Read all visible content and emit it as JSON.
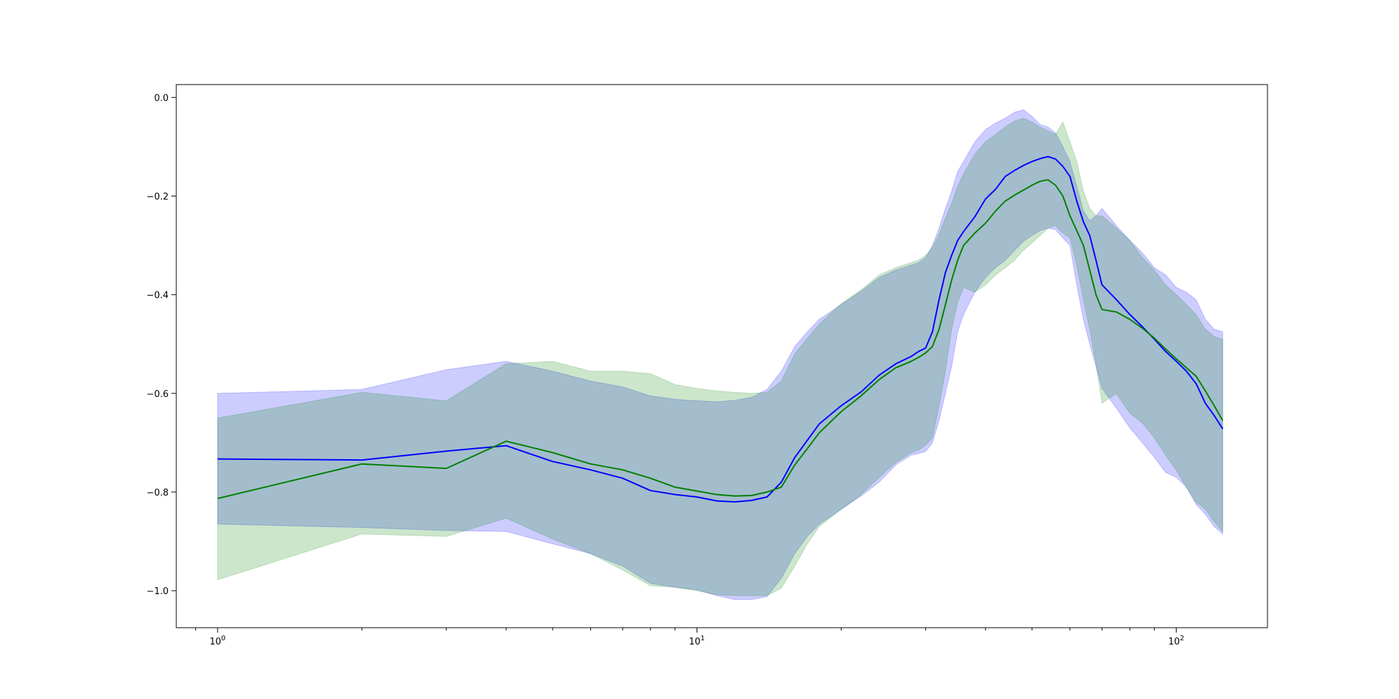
{
  "chart_data": {
    "type": "line",
    "title": "",
    "xlabel": "",
    "ylabel": "",
    "xscale": "log",
    "xlim": [
      0.82,
      155
    ],
    "ylim": [
      -1.075,
      0.026
    ],
    "grid": false,
    "x_tick_labels": [
      {
        "value": 1,
        "base": "10",
        "exp": "0"
      },
      {
        "value": 10,
        "base": "10",
        "exp": "1"
      },
      {
        "value": 100,
        "base": "10",
        "exp": "2"
      }
    ],
    "y_tick_labels": [
      {
        "value": 0.0,
        "label": "0.0"
      },
      {
        "value": -0.2,
        "label": "−0.2"
      },
      {
        "value": -0.4,
        "label": "−0.4"
      },
      {
        "value": -0.6,
        "label": "−0.6"
      },
      {
        "value": -0.8,
        "label": "−0.8"
      },
      {
        "value": -1.0,
        "label": "−1.0"
      }
    ],
    "x": [
      1,
      2,
      3,
      4,
      5,
      6,
      7,
      8,
      9,
      10,
      11,
      12,
      13,
      14,
      15,
      16,
      17,
      18,
      20,
      22,
      24,
      26,
      28,
      29,
      30,
      31,
      32,
      33,
      34,
      35,
      36,
      38,
      40,
      42,
      44,
      46,
      48,
      50,
      52,
      54,
      56,
      58,
      60,
      62,
      64,
      66,
      68,
      70,
      75,
      80,
      85,
      90,
      95,
      100,
      105,
      110,
      115,
      120,
      125
    ],
    "series": [
      {
        "color": "#0000ff",
        "band_color": "rgba(0,0,255,0.2)",
        "values": [
          -0.733,
          -0.735,
          -0.717,
          -0.706,
          -0.738,
          -0.755,
          -0.772,
          -0.797,
          -0.805,
          -0.81,
          -0.818,
          -0.82,
          -0.817,
          -0.81,
          -0.78,
          -0.73,
          -0.695,
          -0.662,
          -0.625,
          -0.597,
          -0.563,
          -0.54,
          -0.525,
          -0.515,
          -0.508,
          -0.475,
          -0.41,
          -0.355,
          -0.32,
          -0.29,
          -0.272,
          -0.242,
          -0.206,
          -0.186,
          -0.16,
          -0.148,
          -0.138,
          -0.13,
          -0.124,
          -0.12,
          -0.125,
          -0.14,
          -0.16,
          -0.21,
          -0.252,
          -0.28,
          -0.33,
          -0.38,
          -0.41,
          -0.44,
          -0.465,
          -0.49,
          -0.515,
          -0.535,
          -0.555,
          -0.58,
          -0.62,
          -0.645,
          -0.672
        ],
        "upper": [
          -0.6,
          -0.592,
          -0.552,
          -0.535,
          -0.555,
          -0.575,
          -0.587,
          -0.605,
          -0.612,
          -0.615,
          -0.617,
          -0.614,
          -0.608,
          -0.592,
          -0.555,
          -0.505,
          -0.475,
          -0.45,
          -0.42,
          -0.393,
          -0.365,
          -0.35,
          -0.34,
          -0.335,
          -0.325,
          -0.3,
          -0.265,
          -0.225,
          -0.19,
          -0.15,
          -0.13,
          -0.09,
          -0.065,
          -0.052,
          -0.042,
          -0.03,
          -0.025,
          -0.038,
          -0.055,
          -0.06,
          -0.072,
          -0.1,
          -0.13,
          -0.18,
          -0.23,
          -0.25,
          -0.24,
          -0.225,
          -0.26,
          -0.29,
          -0.315,
          -0.345,
          -0.36,
          -0.385,
          -0.395,
          -0.41,
          -0.45,
          -0.47,
          -0.475
        ],
        "lower": [
          -0.865,
          -0.872,
          -0.878,
          -0.88,
          -0.905,
          -0.925,
          -0.95,
          -0.985,
          -0.993,
          -0.998,
          -1.01,
          -1.018,
          -1.018,
          -1.012,
          -0.975,
          -0.925,
          -0.89,
          -0.865,
          -0.835,
          -0.808,
          -0.78,
          -0.745,
          -0.725,
          -0.722,
          -0.718,
          -0.7,
          -0.655,
          -0.6,
          -0.545,
          -0.475,
          -0.44,
          -0.395,
          -0.365,
          -0.345,
          -0.33,
          -0.31,
          -0.292,
          -0.28,
          -0.27,
          -0.265,
          -0.268,
          -0.285,
          -0.3,
          -0.38,
          -0.45,
          -0.5,
          -0.545,
          -0.59,
          -0.63,
          -0.67,
          -0.7,
          -0.73,
          -0.76,
          -0.77,
          -0.79,
          -0.825,
          -0.845,
          -0.87,
          -0.885
        ]
      },
      {
        "color": "#008000",
        "band_color": "rgba(0,128,0,0.2)",
        "values": [
          -0.813,
          -0.743,
          -0.752,
          -0.697,
          -0.72,
          -0.743,
          -0.755,
          -0.772,
          -0.79,
          -0.798,
          -0.805,
          -0.808,
          -0.807,
          -0.8,
          -0.79,
          -0.745,
          -0.712,
          -0.68,
          -0.637,
          -0.605,
          -0.572,
          -0.548,
          -0.535,
          -0.527,
          -0.518,
          -0.505,
          -0.47,
          -0.42,
          -0.37,
          -0.33,
          -0.3,
          -0.275,
          -0.255,
          -0.23,
          -0.21,
          -0.198,
          -0.188,
          -0.178,
          -0.17,
          -0.167,
          -0.178,
          -0.2,
          -0.24,
          -0.27,
          -0.3,
          -0.35,
          -0.4,
          -0.43,
          -0.435,
          -0.45,
          -0.468,
          -0.488,
          -0.51,
          -0.53,
          -0.548,
          -0.565,
          -0.595,
          -0.625,
          -0.655
        ],
        "upper": [
          -0.65,
          -0.598,
          -0.615,
          -0.54,
          -0.535,
          -0.555,
          -0.555,
          -0.56,
          -0.582,
          -0.59,
          -0.595,
          -0.598,
          -0.6,
          -0.598,
          -0.575,
          -0.52,
          -0.488,
          -0.46,
          -0.418,
          -0.39,
          -0.36,
          -0.345,
          -0.335,
          -0.33,
          -0.32,
          -0.305,
          -0.278,
          -0.245,
          -0.215,
          -0.18,
          -0.155,
          -0.115,
          -0.09,
          -0.075,
          -0.06,
          -0.048,
          -0.042,
          -0.05,
          -0.06,
          -0.068,
          -0.075,
          -0.05,
          -0.09,
          -0.13,
          -0.19,
          -0.225,
          -0.24,
          -0.24,
          -0.265,
          -0.29,
          -0.325,
          -0.35,
          -0.38,
          -0.4,
          -0.42,
          -0.44,
          -0.47,
          -0.485,
          -0.49
        ],
        "lower": [
          -0.978,
          -0.885,
          -0.89,
          -0.853,
          -0.895,
          -0.925,
          -0.958,
          -0.99,
          -0.993,
          -1.0,
          -1.008,
          -1.01,
          -1.01,
          -1.01,
          -0.995,
          -0.95,
          -0.905,
          -0.87,
          -0.835,
          -0.805,
          -0.77,
          -0.74,
          -0.72,
          -0.715,
          -0.705,
          -0.69,
          -0.625,
          -0.555,
          -0.47,
          -0.415,
          -0.385,
          -0.395,
          -0.38,
          -0.36,
          -0.345,
          -0.33,
          -0.31,
          -0.295,
          -0.28,
          -0.265,
          -0.26,
          -0.275,
          -0.285,
          -0.34,
          -0.41,
          -0.47,
          -0.54,
          -0.62,
          -0.6,
          -0.64,
          -0.66,
          -0.69,
          -0.725,
          -0.755,
          -0.79,
          -0.82,
          -0.835,
          -0.86,
          -0.88
        ]
      }
    ]
  }
}
